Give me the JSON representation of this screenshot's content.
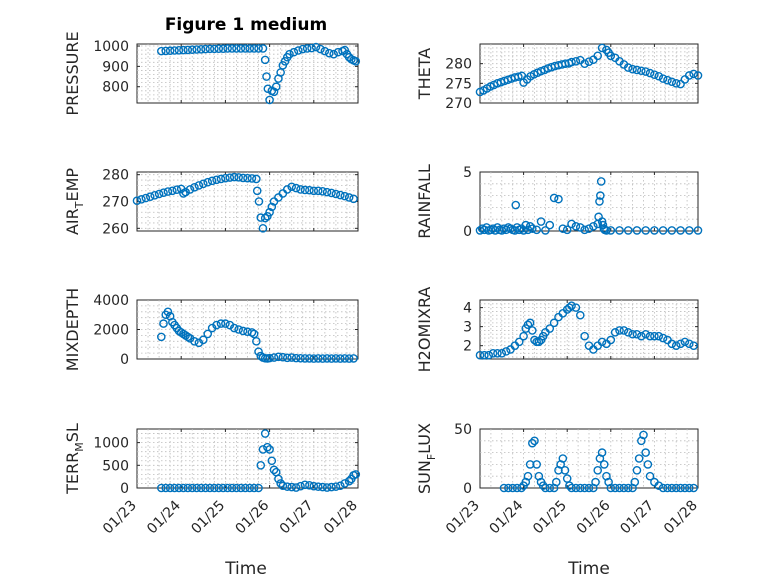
{
  "title": "Figure 1 medium",
  "time_label": "Time",
  "time_ticks": [
    "01/23",
    "01/24",
    "01/25",
    "01/26",
    "01/27",
    "01/28"
  ],
  "marker_color": "#0072BD",
  "chart_data": [
    {
      "type": "scatter",
      "ylabel": "PRESSURE",
      "xlim": [
        0,
        5
      ],
      "ylim": [
        720,
        1010
      ],
      "yticks": [
        800,
        900,
        1000
      ],
      "x": [
        0.55,
        0.65,
        0.75,
        0.85,
        0.95,
        1.05,
        1.15,
        1.25,
        1.35,
        1.45,
        1.55,
        1.65,
        1.75,
        1.85,
        1.95,
        2.05,
        2.15,
        2.25,
        2.35,
        2.45,
        2.55,
        2.65,
        2.75,
        2.85,
        2.9,
        2.93,
        2.96,
        3.0,
        3.05,
        3.1,
        3.15,
        3.2,
        3.25,
        3.3,
        3.35,
        3.4,
        3.45,
        3.55,
        3.65,
        3.75,
        3.85,
        3.95,
        4.05,
        4.15,
        4.25,
        4.35,
        4.45,
        4.55,
        4.65,
        4.7,
        4.75,
        4.8,
        4.85,
        4.9,
        4.95
      ],
      "y": [
        975,
        976,
        977,
        978,
        979,
        980,
        981,
        982,
        983,
        984,
        985,
        986,
        986,
        987,
        987,
        988,
        988,
        988,
        988,
        988,
        988,
        988,
        988,
        988,
        932,
        850,
        790,
        735,
        780,
        775,
        800,
        840,
        870,
        905,
        925,
        945,
        960,
        970,
        978,
        985,
        988,
        990,
        995,
        985,
        975,
        965,
        960,
        970,
        975,
        980,
        960,
        945,
        935,
        930,
        925
      ]
    },
    {
      "type": "scatter",
      "ylabel": "THETA",
      "xlim": [
        0,
        5
      ],
      "ylim": [
        270,
        285
      ],
      "yticks": [
        270,
        275,
        280
      ],
      "x": [
        0.0,
        0.08,
        0.16,
        0.24,
        0.32,
        0.4,
        0.48,
        0.56,
        0.64,
        0.72,
        0.8,
        0.88,
        0.96,
        1.0,
        1.08,
        1.16,
        1.24,
        1.32,
        1.4,
        1.48,
        1.56,
        1.64,
        1.72,
        1.8,
        1.88,
        1.96,
        2.04,
        2.1,
        2.2,
        2.3,
        2.4,
        2.5,
        2.6,
        2.7,
        2.8,
        2.9,
        2.95,
        3.0,
        3.1,
        3.2,
        3.3,
        3.4,
        3.5,
        3.6,
        3.7,
        3.8,
        3.9,
        4.0,
        4.1,
        4.2,
        4.3,
        4.4,
        4.5,
        4.6,
        4.7,
        4.8,
        4.9,
        5.0
      ],
      "y": [
        272.8,
        273.2,
        273.7,
        274.2,
        274.6,
        275.0,
        275.3,
        275.6,
        275.9,
        276.2,
        276.5,
        276.7,
        276.9,
        275.2,
        276.0,
        276.8,
        277.3,
        277.7,
        278.1,
        278.4,
        278.8,
        279.1,
        279.4,
        279.6,
        279.8,
        280.0,
        280.1,
        280.4,
        280.6,
        280.9,
        280.0,
        280.5,
        281.0,
        282.0,
        284.0,
        283.5,
        282.8,
        282.0,
        281.5,
        280.6,
        279.8,
        279.0,
        278.6,
        278.4,
        278.2,
        278.0,
        277.6,
        277.2,
        276.8,
        276.2,
        275.8,
        275.4,
        275.0,
        274.8,
        276.0,
        277.0,
        277.4,
        277.0
      ]
    },
    {
      "type": "scatter",
      "ylabel": "AIR_TEMP",
      "xlim": [
        0,
        5
      ],
      "ylim": [
        259,
        281
      ],
      "yticks": [
        260,
        270,
        280
      ],
      "x": [
        0.0,
        0.1,
        0.2,
        0.3,
        0.4,
        0.5,
        0.6,
        0.7,
        0.8,
        0.9,
        1.0,
        1.05,
        1.1,
        1.2,
        1.3,
        1.4,
        1.5,
        1.6,
        1.7,
        1.8,
        1.9,
        2.0,
        2.1,
        2.2,
        2.3,
        2.4,
        2.5,
        2.6,
        2.7,
        2.72,
        2.76,
        2.8,
        2.85,
        2.9,
        2.95,
        3.0,
        3.05,
        3.1,
        3.2,
        3.3,
        3.4,
        3.5,
        3.6,
        3.7,
        3.8,
        3.9,
        4.0,
        4.1,
        4.2,
        4.3,
        4.4,
        4.5,
        4.6,
        4.7,
        4.8,
        4.9
      ],
      "y": [
        270.3,
        270.8,
        271.3,
        271.8,
        272.3,
        272.8,
        273.3,
        273.7,
        274.0,
        274.4,
        274.7,
        273.0,
        273.5,
        274.5,
        275.3,
        276.0,
        276.6,
        277.2,
        277.7,
        278.1,
        278.4,
        278.7,
        278.9,
        279.1,
        279.0,
        278.8,
        278.7,
        278.6,
        278.4,
        274.0,
        270.0,
        264.0,
        260.0,
        263.8,
        264.5,
        266.0,
        268.0,
        270.0,
        271.5,
        273.0,
        274.5,
        275.5,
        275.0,
        274.5,
        274.3,
        274.2,
        274.0,
        274.0,
        273.8,
        273.5,
        273.2,
        272.8,
        272.4,
        272.0,
        271.5,
        271.0
      ]
    },
    {
      "type": "scatter",
      "ylabel": "RAINFALL",
      "xlim": [
        0,
        5
      ],
      "ylim": [
        0,
        5
      ],
      "yticks": [
        0,
        5
      ],
      "x": [
        0.0,
        0.05,
        0.1,
        0.15,
        0.2,
        0.25,
        0.3,
        0.35,
        0.4,
        0.45,
        0.5,
        0.55,
        0.6,
        0.65,
        0.7,
        0.75,
        0.8,
        0.82,
        0.85,
        0.9,
        0.95,
        1.0,
        1.05,
        1.1,
        1.15,
        1.2,
        1.3,
        1.4,
        1.5,
        1.6,
        1.7,
        1.8,
        1.9,
        2.0,
        2.1,
        2.2,
        2.3,
        2.4,
        2.5,
        2.6,
        2.7,
        2.72,
        2.74,
        2.76,
        2.78,
        2.8,
        2.82,
        2.84,
        2.86,
        2.9,
        3.0,
        3.2,
        3.4,
        3.6,
        3.8,
        4.0,
        4.2,
        4.4,
        4.6,
        4.8,
        5.0
      ],
      "y": [
        0.05,
        0.2,
        0.1,
        0.3,
        0.05,
        0.1,
        0.2,
        0.05,
        0.3,
        0.1,
        0.05,
        0.2,
        0.1,
        0.3,
        0.2,
        0.1,
        0.05,
        2.2,
        0.3,
        0.1,
        0.2,
        0.05,
        0.5,
        0.1,
        0.4,
        0.2,
        0.1,
        0.8,
        0.05,
        0.5,
        2.8,
        2.7,
        0.2,
        0.1,
        0.6,
        0.4,
        0.3,
        0.1,
        0.2,
        0.4,
        0.6,
        1.2,
        2.5,
        3.0,
        4.2,
        0.8,
        0.5,
        0.2,
        0.1,
        0.05,
        0.05,
        0.05,
        0.05,
        0.05,
        0.05,
        0.05,
        0.05,
        0.05,
        0.05,
        0.05,
        0.05
      ]
    },
    {
      "type": "scatter",
      "ylabel": "MIXDEPTH",
      "xlim": [
        0,
        5
      ],
      "ylim": [
        0,
        4000
      ],
      "yticks": [
        0,
        2000,
        4000
      ],
      "x": [
        0.55,
        0.6,
        0.65,
        0.7,
        0.75,
        0.8,
        0.85,
        0.9,
        0.95,
        1.0,
        1.05,
        1.1,
        1.15,
        1.2,
        1.3,
        1.4,
        1.5,
        1.6,
        1.7,
        1.8,
        1.9,
        2.0,
        2.1,
        2.2,
        2.3,
        2.4,
        2.5,
        2.6,
        2.65,
        2.7,
        2.75,
        2.8,
        2.85,
        2.9,
        2.95,
        3.0,
        3.1,
        3.2,
        3.3,
        3.4,
        3.5,
        3.6,
        3.7,
        3.8,
        3.9,
        4.0,
        4.1,
        4.2,
        4.3,
        4.4,
        4.5,
        4.6,
        4.7,
        4.8,
        4.9
      ],
      "y": [
        1500,
        2400,
        3000,
        3200,
        2900,
        2500,
        2300,
        2100,
        1900,
        1800,
        1700,
        1600,
        1500,
        1400,
        1200,
        1100,
        1300,
        1700,
        2100,
        2300,
        2400,
        2400,
        2300,
        2100,
        2000,
        1900,
        1850,
        1800,
        1700,
        1200,
        500,
        200,
        100,
        50,
        40,
        60,
        100,
        150,
        120,
        80,
        100,
        60,
        50,
        40,
        40,
        30,
        40,
        30,
        40,
        30,
        40,
        30,
        40,
        30,
        40
      ]
    },
    {
      "type": "scatter",
      "ylabel": "H2OMIXRA",
      "xlim": [
        0,
        5
      ],
      "ylim": [
        1.3,
        4.4
      ],
      "yticks": [
        2,
        3,
        4
      ],
      "x": [
        0.0,
        0.1,
        0.2,
        0.3,
        0.4,
        0.5,
        0.6,
        0.7,
        0.8,
        0.9,
        1.0,
        1.05,
        1.1,
        1.15,
        1.2,
        1.25,
        1.3,
        1.35,
        1.4,
        1.45,
        1.5,
        1.6,
        1.7,
        1.8,
        1.9,
        2.0,
        2.05,
        2.1,
        2.2,
        2.3,
        2.4,
        2.5,
        2.6,
        2.7,
        2.8,
        2.9,
        3.0,
        3.1,
        3.2,
        3.3,
        3.4,
        3.5,
        3.6,
        3.7,
        3.8,
        3.9,
        4.0,
        4.1,
        4.2,
        4.3,
        4.4,
        4.5,
        4.6,
        4.7,
        4.8,
        4.9
      ],
      "y": [
        1.5,
        1.5,
        1.5,
        1.6,
        1.6,
        1.6,
        1.7,
        1.8,
        2.0,
        2.2,
        2.5,
        2.9,
        3.1,
        3.2,
        2.8,
        2.3,
        2.2,
        2.2,
        2.3,
        2.5,
        2.7,
        2.9,
        3.2,
        3.5,
        3.7,
        3.9,
        4.0,
        4.1,
        4.0,
        3.6,
        2.5,
        2.0,
        1.8,
        2.0,
        2.2,
        2.1,
        2.3,
        2.7,
        2.8,
        2.8,
        2.7,
        2.6,
        2.6,
        2.5,
        2.6,
        2.5,
        2.5,
        2.5,
        2.4,
        2.3,
        2.1,
        2.0,
        2.1,
        2.2,
        2.1,
        2.0
      ]
    },
    {
      "type": "scatter",
      "ylabel": "TERR_MSL",
      "xlim": [
        0,
        5
      ],
      "ylim": [
        0,
        1300
      ],
      "yticks": [
        0,
        500,
        1000
      ],
      "x": [
        0.55,
        0.65,
        0.75,
        0.85,
        0.95,
        1.05,
        1.15,
        1.25,
        1.35,
        1.45,
        1.55,
        1.65,
        1.75,
        1.85,
        1.95,
        2.05,
        2.15,
        2.25,
        2.35,
        2.45,
        2.55,
        2.65,
        2.75,
        2.8,
        2.85,
        2.9,
        2.95,
        3.0,
        3.05,
        3.1,
        3.15,
        3.2,
        3.25,
        3.3,
        3.4,
        3.5,
        3.6,
        3.7,
        3.8,
        3.9,
        4.0,
        4.1,
        4.2,
        4.3,
        4.4,
        4.5,
        4.6,
        4.7,
        4.8,
        4.85,
        4.9,
        4.95
      ],
      "y": [
        0,
        0,
        0,
        0,
        0,
        0,
        0,
        0,
        0,
        0,
        0,
        0,
        0,
        0,
        0,
        0,
        0,
        0,
        0,
        0,
        0,
        0,
        0,
        500,
        850,
        1200,
        900,
        850,
        600,
        400,
        350,
        200,
        100,
        50,
        30,
        20,
        10,
        40,
        70,
        60,
        40,
        30,
        20,
        10,
        20,
        30,
        50,
        100,
        150,
        200,
        280,
        300
      ]
    },
    {
      "type": "scatter",
      "ylabel": "SUN_FLUX",
      "xlim": [
        0,
        5
      ],
      "ylim": [
        0,
        50
      ],
      "yticks": [
        0,
        50
      ],
      "x": [
        0.55,
        0.65,
        0.75,
        0.85,
        0.95,
        1.0,
        1.05,
        1.1,
        1.15,
        1.2,
        1.25,
        1.3,
        1.35,
        1.4,
        1.45,
        1.5,
        1.6,
        1.7,
        1.75,
        1.8,
        1.85,
        1.9,
        1.95,
        2.0,
        2.05,
        2.1,
        2.2,
        2.3,
        2.4,
        2.5,
        2.6,
        2.65,
        2.7,
        2.75,
        2.8,
        2.85,
        2.9,
        2.95,
        3.0,
        3.1,
        3.2,
        3.3,
        3.4,
        3.5,
        3.55,
        3.6,
        3.65,
        3.7,
        3.75,
        3.8,
        3.85,
        3.9,
        4.0,
        4.1,
        4.2,
        4.3,
        4.4,
        4.5,
        4.6,
        4.7,
        4.8,
        4.9
      ],
      "y": [
        0,
        0,
        0,
        0,
        0,
        2,
        5,
        10,
        20,
        38,
        40,
        20,
        10,
        5,
        2,
        0,
        0,
        0,
        5,
        15,
        20,
        25,
        15,
        8,
        2,
        0,
        0,
        0,
        0,
        0,
        0,
        5,
        15,
        25,
        30,
        20,
        10,
        5,
        0,
        0,
        0,
        0,
        0,
        0,
        5,
        15,
        25,
        40,
        45,
        30,
        20,
        10,
        5,
        2,
        0,
        0,
        0,
        0,
        0,
        0,
        0,
        0
      ]
    }
  ]
}
